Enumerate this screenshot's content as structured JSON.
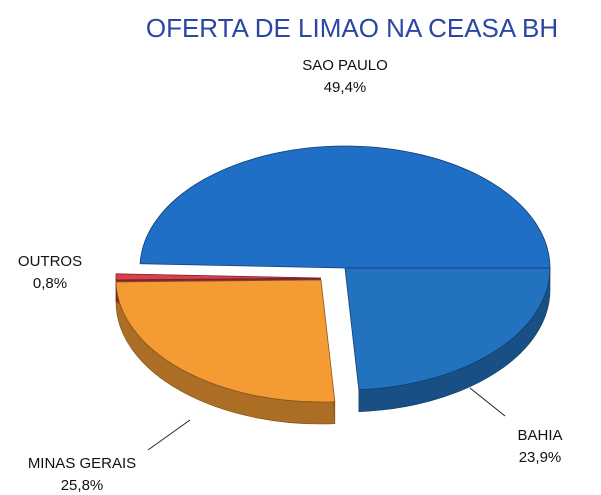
{
  "chart_data": {
    "type": "pie",
    "title": "OFERTA DE LIMAO NA CEASA BH",
    "categories": [
      "SAO PAULO",
      "BAHIA",
      "MINAS GERAIS",
      "OUTROS"
    ],
    "values": [
      49.4,
      23.9,
      25.8,
      0.8
    ],
    "value_labels": [
      "49,4%",
      "23,9%",
      "25,8%",
      "0,8%"
    ],
    "colors": [
      "#1f6fc6",
      "#2272c0",
      "#f59b34",
      "#d8404e"
    ]
  }
}
